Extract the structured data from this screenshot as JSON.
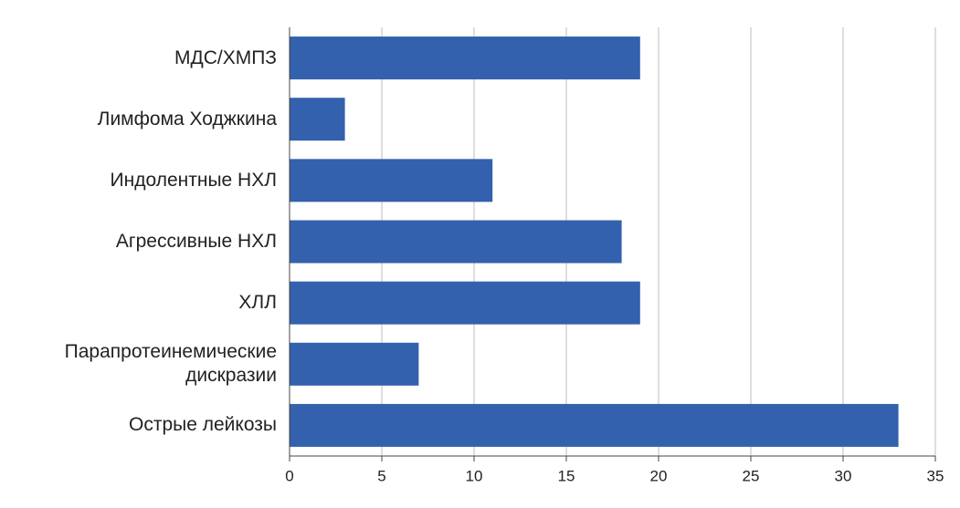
{
  "chart_data": {
    "type": "barh",
    "categories": [
      "МДС/ХМПЗ",
      "Лимфома Ходжкина",
      "Индолентные НХЛ",
      "Агрессивные НХЛ",
      "ХЛЛ",
      "Парапротеинемические\nдискразии",
      "Острые лейкозы"
    ],
    "values": [
      19,
      3,
      11,
      18,
      19,
      7,
      33
    ],
    "color": "#3361ad",
    "xlim": [
      0,
      35
    ],
    "xticks": [
      0,
      5,
      10,
      15,
      20,
      25,
      30,
      35
    ],
    "grid": true
  }
}
